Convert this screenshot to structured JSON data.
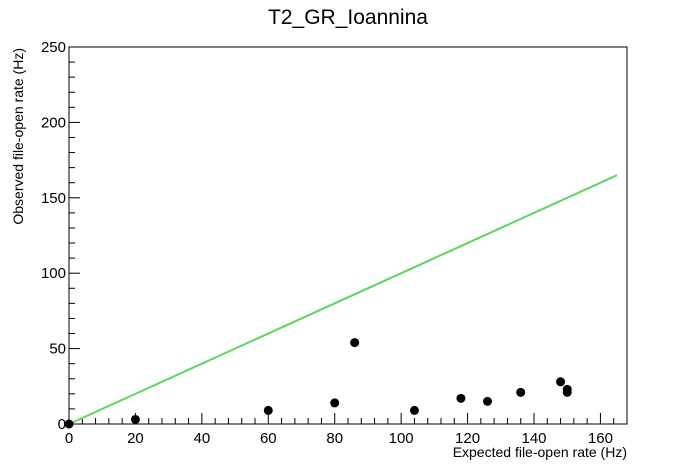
{
  "chart_data": {
    "type": "scatter",
    "title": "T2_GR_Ioannina",
    "xlabel": "Expected file-open rate (Hz)",
    "ylabel": "Observed file-open rate (Hz)",
    "xlim": [
      0,
      168
    ],
    "ylim": [
      0,
      250
    ],
    "x_ticks": [
      0,
      20,
      40,
      60,
      80,
      100,
      120,
      140,
      160
    ],
    "y_ticks": [
      0,
      50,
      100,
      150,
      200,
      250
    ],
    "grid": false,
    "series": [
      {
        "type": "scatter",
        "color": "#000000",
        "points": [
          {
            "x": 0,
            "y": 0
          },
          {
            "x": 20,
            "y": 3
          },
          {
            "x": 60,
            "y": 9
          },
          {
            "x": 80,
            "y": 14
          },
          {
            "x": 86,
            "y": 54
          },
          {
            "x": 104,
            "y": 9
          },
          {
            "x": 118,
            "y": 17
          },
          {
            "x": 126,
            "y": 15
          },
          {
            "x": 136,
            "y": 21
          },
          {
            "x": 148,
            "y": 28
          },
          {
            "x": 150,
            "y": 23
          },
          {
            "x": 150,
            "y": 21
          }
        ]
      },
      {
        "type": "line",
        "color": "#5cd65c",
        "points": [
          {
            "x": 0,
            "y": 0
          },
          {
            "x": 165,
            "y": 165
          }
        ]
      }
    ]
  }
}
